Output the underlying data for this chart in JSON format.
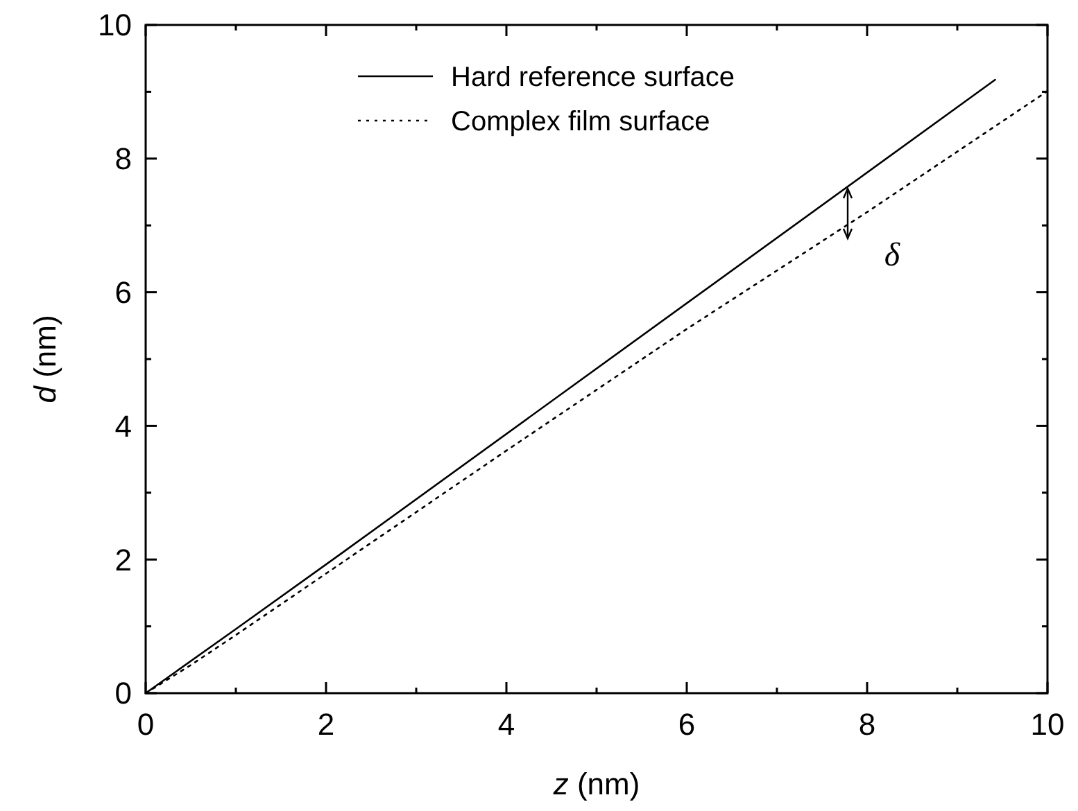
{
  "chart_data": {
    "type": "line",
    "xlabel": "z (nm)",
    "ylabel": "d (nm)",
    "xlim": [
      0,
      10
    ],
    "ylim": [
      0,
      10
    ],
    "xticks": [
      0,
      {
        "value": 1,
        "label": null
      },
      2,
      {
        "value": 3,
        "label": null
      },
      4,
      {
        "value": 5,
        "label": null
      },
      6,
      {
        "value": 7,
        "label": null
      },
      8,
      {
        "value": 9,
        "label": null
      },
      10
    ],
    "yticks": [
      0,
      {
        "value": 1,
        "label": null
      },
      2,
      {
        "value": 3,
        "label": null
      },
      4,
      {
        "value": 5,
        "label": null
      },
      6,
      {
        "value": 7,
        "label": null
      },
      8,
      {
        "value": 9,
        "label": null
      },
      10
    ],
    "series": [
      {
        "name": "Hard reference surface",
        "color": "#000000",
        "line_style": "solid",
        "x": [
          0,
          1,
          2.2,
          9.42
        ],
        "values": [
          0,
          0.96,
          2.12,
          9.18
        ]
      },
      {
        "name": "Complex film surface",
        "color": "#000000",
        "line_style": "dotted",
        "x": [
          0,
          0.5,
          1,
          2,
          4,
          6,
          8,
          10
        ],
        "values": [
          0,
          0.42,
          0.87,
          1.79,
          3.63,
          5.45,
          7.2,
          9.01
        ]
      }
    ],
    "annotations": [
      "δ"
    ],
    "legend": "top",
    "grid": false,
    "marker": "none"
  }
}
